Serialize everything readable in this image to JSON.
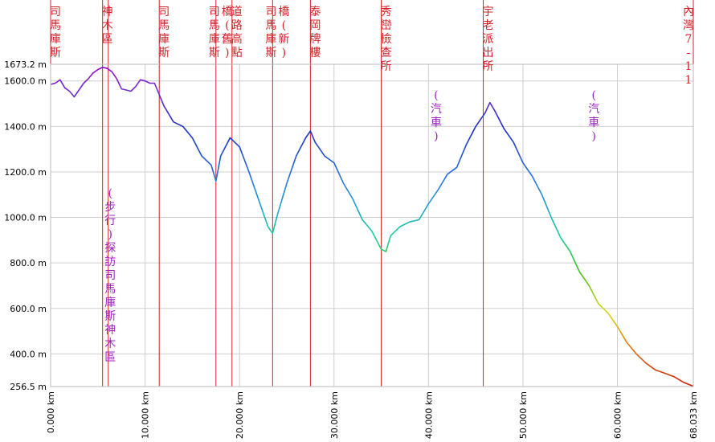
{
  "chart_data": {
    "type": "line",
    "xlabel": "",
    "ylabel": "",
    "x_unit": "km",
    "y_unit": "m",
    "xlim": [
      0,
      68.033
    ],
    "ylim": [
      256.5,
      1673.2
    ],
    "x_ticks": [
      "0.000 km",
      "10.000 km",
      "20.000 km",
      "30.000 km",
      "40.000 km",
      "50.000 km",
      "60.000 km",
      "68.033 km"
    ],
    "x_tick_values": [
      0,
      10,
      20,
      30,
      40,
      50,
      60,
      68.033
    ],
    "y_ticks": [
      "256.5 m",
      "400.0 m",
      "600.0 m",
      "800.0 m",
      "1000.0 m",
      "1200.0 m",
      "1400.0 m",
      "1600.0 m",
      "1673.2 m"
    ],
    "y_tick_values": [
      256.5,
      400,
      600,
      800,
      1000,
      1200,
      1400,
      1600,
      1673.2
    ],
    "grid": true,
    "series": [
      {
        "x": [
          0,
          0.5,
          1,
          1.5,
          2,
          2.5,
          3,
          3.5,
          4,
          4.5,
          5,
          5.5,
          6,
          6.5,
          7,
          7.5,
          8,
          8.5,
          9,
          9.5,
          10,
          10.5,
          11,
          11.5,
          12,
          13,
          14,
          15,
          16,
          17,
          17.5,
          18,
          19,
          20,
          21,
          22,
          23,
          23.5,
          24,
          25,
          26,
          27,
          27.5,
          28,
          29,
          30,
          31,
          32,
          33,
          34,
          35,
          35.5,
          36,
          37,
          38,
          39,
          40,
          41,
          42,
          43,
          44,
          45,
          46,
          46.5,
          47,
          48,
          49,
          50,
          51,
          52,
          53,
          54,
          55,
          56,
          57,
          58,
          59,
          60,
          61,
          62,
          63,
          64,
          65,
          66,
          67,
          68.033
        ],
        "y": [
          1585,
          1590,
          1605,
          1570,
          1555,
          1530,
          1560,
          1590,
          1610,
          1635,
          1650,
          1660,
          1655,
          1640,
          1610,
          1565,
          1560,
          1555,
          1575,
          1605,
          1600,
          1590,
          1590,
          1540,
          1490,
          1420,
          1400,
          1350,
          1270,
          1230,
          1160,
          1270,
          1350,
          1310,
          1200,
          1080,
          960,
          930,
          1010,
          1150,
          1270,
          1350,
          1380,
          1330,
          1270,
          1240,
          1150,
          1080,
          990,
          940,
          860,
          850,
          920,
          960,
          980,
          990,
          1060,
          1120,
          1190,
          1220,
          1320,
          1400,
          1460,
          1505,
          1470,
          1390,
          1330,
          1240,
          1180,
          1100,
          1000,
          910,
          850,
          760,
          700,
          620,
          580,
          520,
          450,
          400,
          360,
          330,
          315,
          300,
          275,
          258
        ]
      }
    ],
    "waypoints": [
      {
        "x": 0,
        "label": "司馬庫斯"
      },
      {
        "x": 5.5,
        "label": "神木區"
      },
      {
        "x": 11.5,
        "label": "司馬庫斯"
      },
      {
        "x": 17.5,
        "label": "司馬庫斯橋(舊)"
      },
      {
        "x": 19.2,
        "label": "道路高點"
      },
      {
        "x": 23.5,
        "label": "司馬庫斯橋(新)"
      },
      {
        "x": 27.5,
        "label": "泰岡牌樓"
      },
      {
        "x": 35.0,
        "label": "秀巒檢查所"
      },
      {
        "x": 45.8,
        "label": "宇老派出所"
      },
      {
        "x": 68.033,
        "label": "內灣7-11"
      }
    ],
    "extra_lines_x": [
      6.1
    ],
    "annotations": [
      {
        "label": "(步行)探訪司馬庫斯神木區",
        "x": 5.8
      },
      {
        "label": "(汽車)",
        "x": 40.3
      },
      {
        "label": "(汽車)",
        "x": 57.0
      }
    ],
    "colors": {
      "waypoint_line": "#d2232a",
      "annotation": "#9b22c0",
      "grid": "#cfcfcf",
      "gradient_low": "#c81e0a",
      "gradient_high": "#9900cc"
    }
  }
}
